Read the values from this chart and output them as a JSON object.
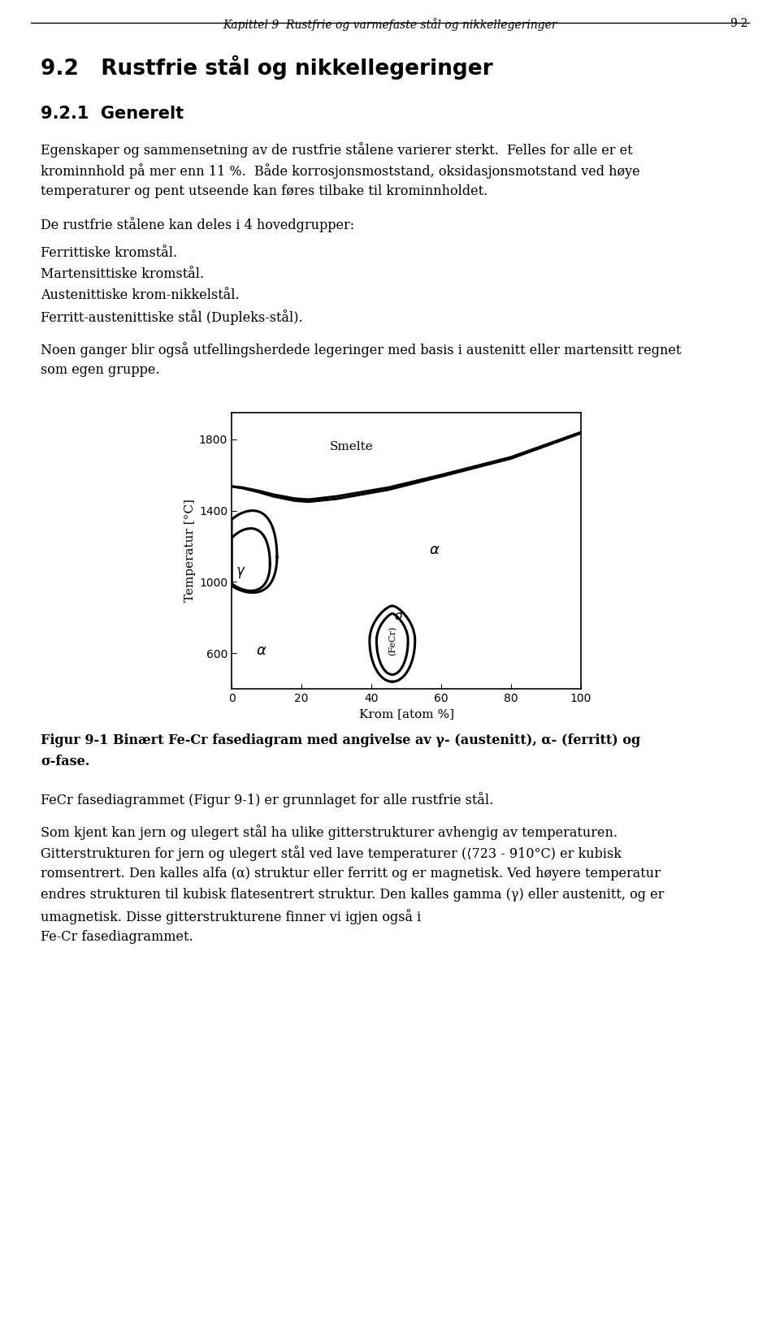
{
  "header_italic": "Kapittel 9  Rustfrie og varmefaste stål og nikkellegeringer",
  "header_right": "9-2",
  "section_title": "9.2   Rustfrie stål og nikkellegeringer",
  "subsection_title": "9.2.1  Generelt",
  "para1_line1": "Egenskaper og sammensetning av de rustfrie stålene varierer sterkt.  Felles for alle er et",
  "para1_line2": "krominnhold på mer enn 11 %.  Både korrosjonsmoststand, oksidasjonsmotstand ved høye",
  "para1_line3": "temperaturer og pent utseende kan føres tilbake til krominnholdet.",
  "para2_intro": "De rustfrie stålene kan deles i 4 hovedgrupper:",
  "para2_items": [
    "Ferrittiske kromstål.",
    "Martensittiske kromstål.",
    "Austenittiske krom-nikkelstål.",
    "Ferritt-austenittiske stål (Dupleks-stål)."
  ],
  "para3_line1": "Noen ganger blir også utfellingsherdede legeringer med basis i austenitt eller martensitt regnet",
  "para3_line2": "som egen gruppe.",
  "fig_caption_line1": "Figur 9-1 Binært Fe-Cr fasediagram med angivelse av γ- (austenitt), α- (ferritt) og",
  "fig_caption_line2": "σ-fase.",
  "para4": "FeCr fasediagrammet (Figur 9-1) er grunnlaget for alle rustfrie stål.",
  "para5_line1": "Som kjent kan jern og ulegert stål ha ulike gitterstrukturer avhengig av temperaturen.",
  "para5_line2": "Gitterstrukturen for jern og ulegert stål ved lave temperaturer (⟨723 - 910°C) er kubisk",
  "para5_line3": "romsentrert. Den kalles alfa (α) struktur eller ferritt og er magnetisk. Ved høyere temperatur",
  "para5_line4": "endres strukturen til kubisk flatesentrert struktur. Den kalles gamma (γ) eller austenitt, og er",
  "para5_line5": "umagnetisk. Disse gitterstrukturene finner vi igjen også i",
  "para5_line6": "Fe-Cr fasediagrammet.",
  "diagram_xlabel": "Krom [atom %]",
  "diagram_ylabel": "Temperatur [°C]"
}
